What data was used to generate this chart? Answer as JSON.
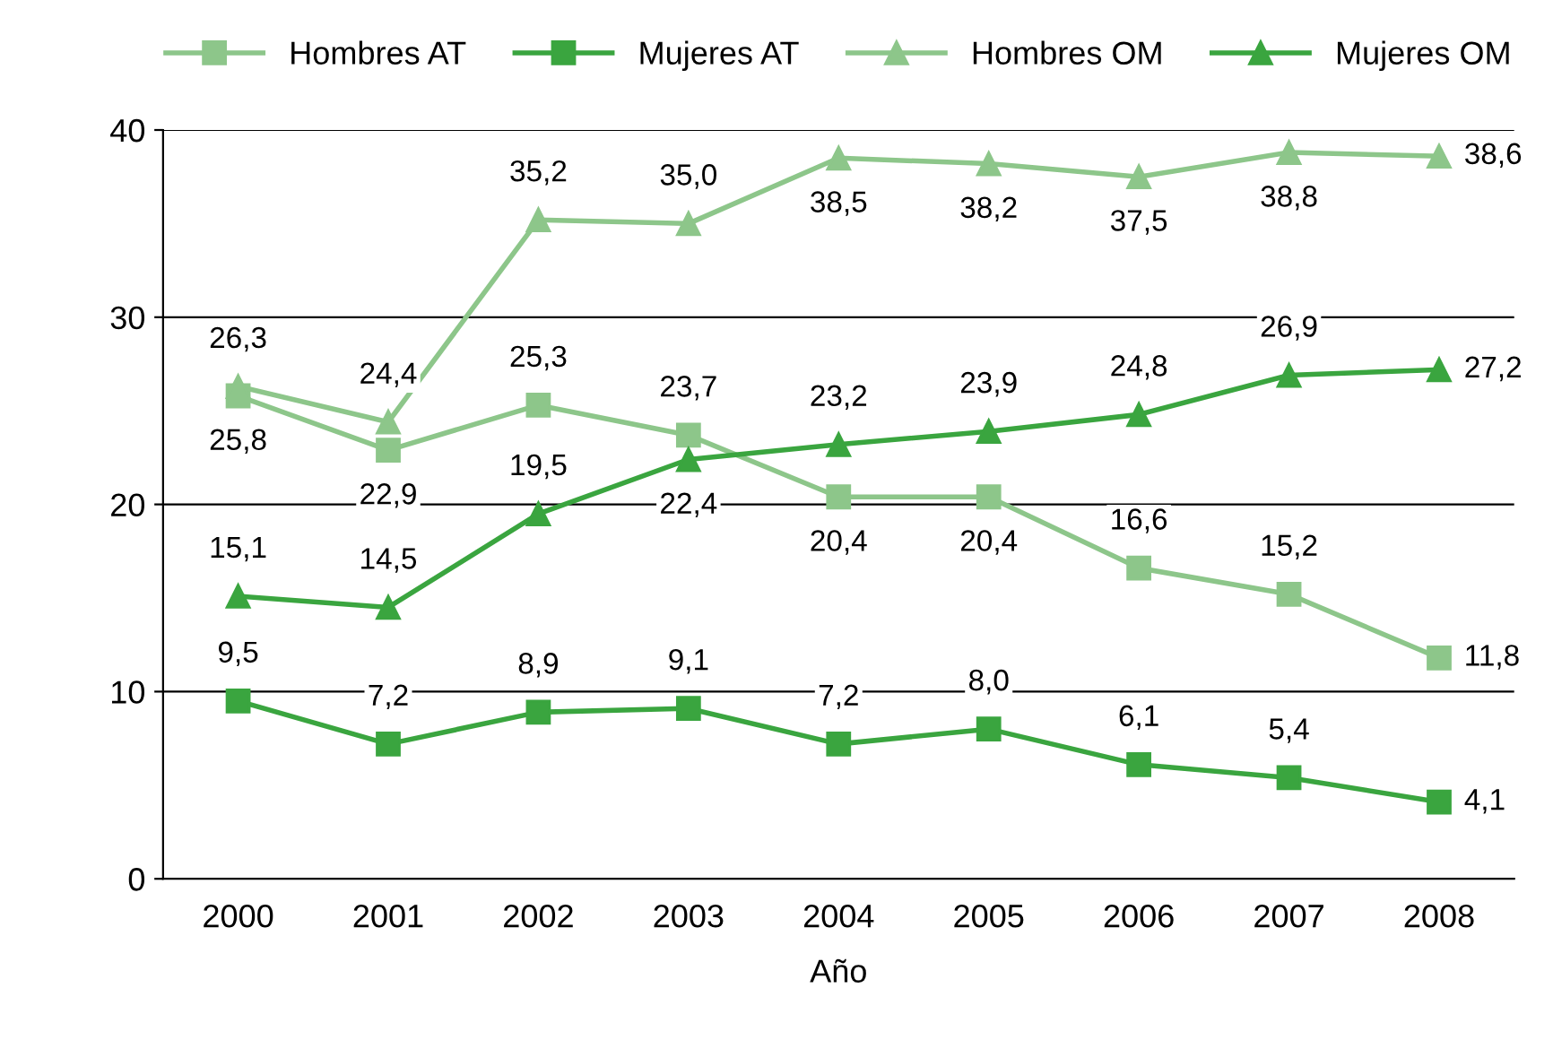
{
  "chart_data": {
    "type": "line",
    "xlabel": "Año",
    "categories": [
      "2000",
      "2001",
      "2002",
      "2003",
      "2004",
      "2005",
      "2006",
      "2007",
      "2008"
    ],
    "series": [
      {
        "name": "Hombres AT",
        "color": "#8dc68a",
        "marker": "square",
        "values": [
          25.8,
          22.9,
          25.3,
          23.7,
          20.4,
          20.4,
          16.6,
          15.2,
          11.8
        ],
        "value_labels": [
          "25,8",
          "22,9",
          "25,3",
          "23,7",
          "20,4",
          "20,4",
          "16,6",
          "15,2",
          "11,8"
        ]
      },
      {
        "name": "Mujeres AT",
        "color": "#3aa53f",
        "marker": "square",
        "values": [
          9.5,
          7.2,
          8.9,
          9.1,
          7.2,
          8.0,
          6.1,
          5.4,
          4.1
        ],
        "value_labels": [
          "9,5",
          "7,2",
          "8,9",
          "9,1",
          "7,2",
          "8,0",
          "6,1",
          "5,4",
          "4,1"
        ]
      },
      {
        "name": "Hombres OM",
        "color": "#8dc68a",
        "marker": "triangle",
        "values": [
          26.3,
          24.4,
          35.2,
          35.0,
          38.5,
          38.2,
          37.5,
          38.8,
          38.6
        ],
        "value_labels": [
          "26,3",
          "24,4",
          "35,2",
          "35,0",
          "38,5",
          "38,2",
          "37,5",
          "38,8",
          "38,6"
        ]
      },
      {
        "name": "Mujeres OM",
        "color": "#3aa53f",
        "marker": "triangle",
        "values": [
          15.1,
          14.5,
          19.5,
          22.4,
          23.2,
          23.9,
          24.8,
          26.9,
          27.2
        ],
        "value_labels": [
          "15,1",
          "14,5",
          "19,5",
          "22,4",
          "23,2",
          "23,9",
          "24,8",
          "26,9",
          "27,2"
        ]
      }
    ],
    "ylim": [
      0,
      40
    ],
    "yticks": [
      0,
      10,
      20,
      30,
      40
    ],
    "grid": "y",
    "legend": "top"
  }
}
